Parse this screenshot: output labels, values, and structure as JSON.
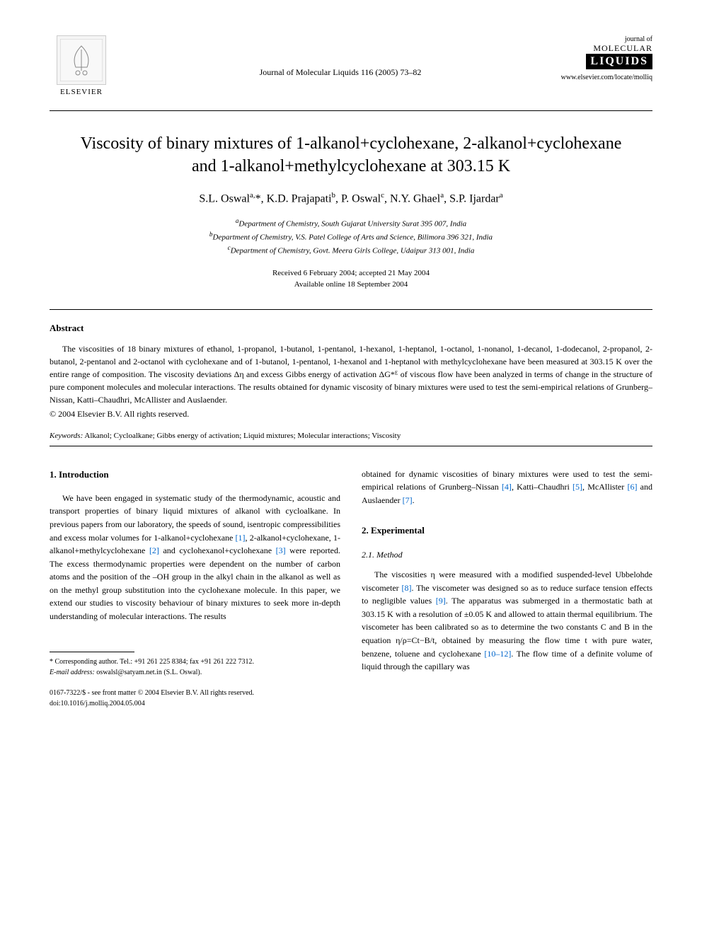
{
  "header": {
    "publisher_name": "ELSEVIER",
    "journal_reference": "Journal of Molecular Liquids 116 (2005) 73–82",
    "journal_logo_top": "journal of",
    "journal_logo_middle": "MOLECULAR",
    "journal_logo_bottom": "LIQUIDS",
    "url": "www.elsevier.com/locate/molliq"
  },
  "title": "Viscosity of binary mixtures of 1-alkanol+cyclohexane, 2-alkanol+cyclohexane and 1-alkanol+methylcyclohexane at 303.15 K",
  "authors_html": "S.L. Oswal<sup>a,</sup>*, K.D. Prajapati<sup>b</sup>, P. Oswal<sup>c</sup>, N.Y. Ghael<sup>a</sup>, S.P. Ijardar<sup>a</sup>",
  "affiliations": {
    "a": "Department of Chemistry, South Gujarat University Surat 395 007, India",
    "b": "Department of Chemistry, V.S. Patel College of Arts and Science, Bilimora 396 321, India",
    "c": "Department of Chemistry, Govt. Meera Girls College, Udaipur 313 001, India"
  },
  "dates": {
    "received_accepted": "Received 6 February 2004; accepted 21 May 2004",
    "online": "Available online 18 September 2004"
  },
  "abstract": {
    "heading": "Abstract",
    "text": "The viscosities of 18 binary mixtures of ethanol, 1-propanol, 1-butanol, 1-pentanol, 1-hexanol, 1-heptanol, 1-octanol, 1-nonanol, 1-decanol, 1-dodecanol, 2-propanol, 2-butanol, 2-pentanol and 2-octanol with cyclohexane and of 1-butanol, 1-pentanol, 1-hexanol and 1-heptanol with methylcyclohexane have been measured at 303.15 K over the entire range of composition. The viscosity deviations Δη and excess Gibbs energy of activation ΔG*ᴱ of viscous flow have been analyzed in terms of change in the structure of pure component molecules and molecular interactions. The results obtained for dynamic viscosity of binary mixtures were used to test the semi-empirical relations of Grunberg–Nissan, Katti–Chaudhri, McAllister and Auslaender.",
    "copyright": "© 2004 Elsevier B.V. All rights reserved."
  },
  "keywords": {
    "label": "Keywords:",
    "text": "Alkanol; Cycloalkane; Gibbs energy of activation; Liquid mixtures; Molecular interactions; Viscosity"
  },
  "section1": {
    "heading": "1. Introduction",
    "para1_pre": "We have been engaged in systematic study of the thermodynamic, acoustic and transport properties of binary liquid mixtures of alkanol with cycloalkane. In previous papers from our laboratory, the speeds of sound, isentropic compressibilities and excess molar volumes for 1-alkanol+cyclohexane ",
    "ref1": "[1]",
    "para1_mid1": ", 2-alkanol+cyclohexane, 1-alkanol+methylcyclohexane ",
    "ref2": "[2]",
    "para1_mid2": " and cyclohexanol+cyclohexane ",
    "ref3": "[3]",
    "para1_post": " were reported. The excess thermodynamic properties were dependent on the number of carbon atoms and the position of the –OH group in the alkyl chain in the alkanol as well as on the methyl group substitution into the cyclohexane molecule. In this paper, we extend our studies to viscosity behaviour of binary mixtures to seek more in-depth understanding of molecular interactions. The results",
    "col2_pre": "obtained for dynamic viscosities of binary mixtures were used to test the semi-empirical relations of Grunberg–Nissan ",
    "ref4": "[4]",
    "col2_mid1": ", Katti–Chaudhri ",
    "ref5": "[5]",
    "col2_mid2": ", McAllister ",
    "ref6": "[6]",
    "col2_mid3": " and Auslaender ",
    "ref7": "[7]",
    "col2_end": "."
  },
  "section2": {
    "heading": "2. Experimental",
    "sub21": "2.1. Method",
    "para_pre": "The viscosities η were measured with a modified suspended-level Ubbelohde viscometer ",
    "ref8": "[8]",
    "para_mid1": ". The viscometer was designed so as to reduce surface tension effects to negligible values ",
    "ref9": "[9]",
    "para_post": ". The apparatus was submerged in a thermostatic bath at 303.15 K with a resolution of ±0.05 K and allowed to attain thermal equilibrium. The viscometer has been calibrated so as to determine the two constants C and B in the equation η/ρ=Ct−B/t, obtained by measuring the flow time t with pure water, benzene, toluene and cyclohexane ",
    "ref10_12": "[10–12]",
    "para_end": ". The flow time of a definite volume of liquid through the capillary was"
  },
  "footnotes": {
    "corresponding": "* Corresponding author. Tel.: +91 261 225 8384; fax +91 261 222 7312.",
    "email_label": "E-mail address:",
    "email": "oswalsl@satyam.net.in (S.L. Oswal)."
  },
  "footer": {
    "issn": "0167-7322/$ - see front matter © 2004 Elsevier B.V. All rights reserved.",
    "doi": "doi:10.1016/j.molliq.2004.05.004"
  },
  "colors": {
    "link": "#0066cc",
    "text": "#000000",
    "background": "#ffffff"
  }
}
